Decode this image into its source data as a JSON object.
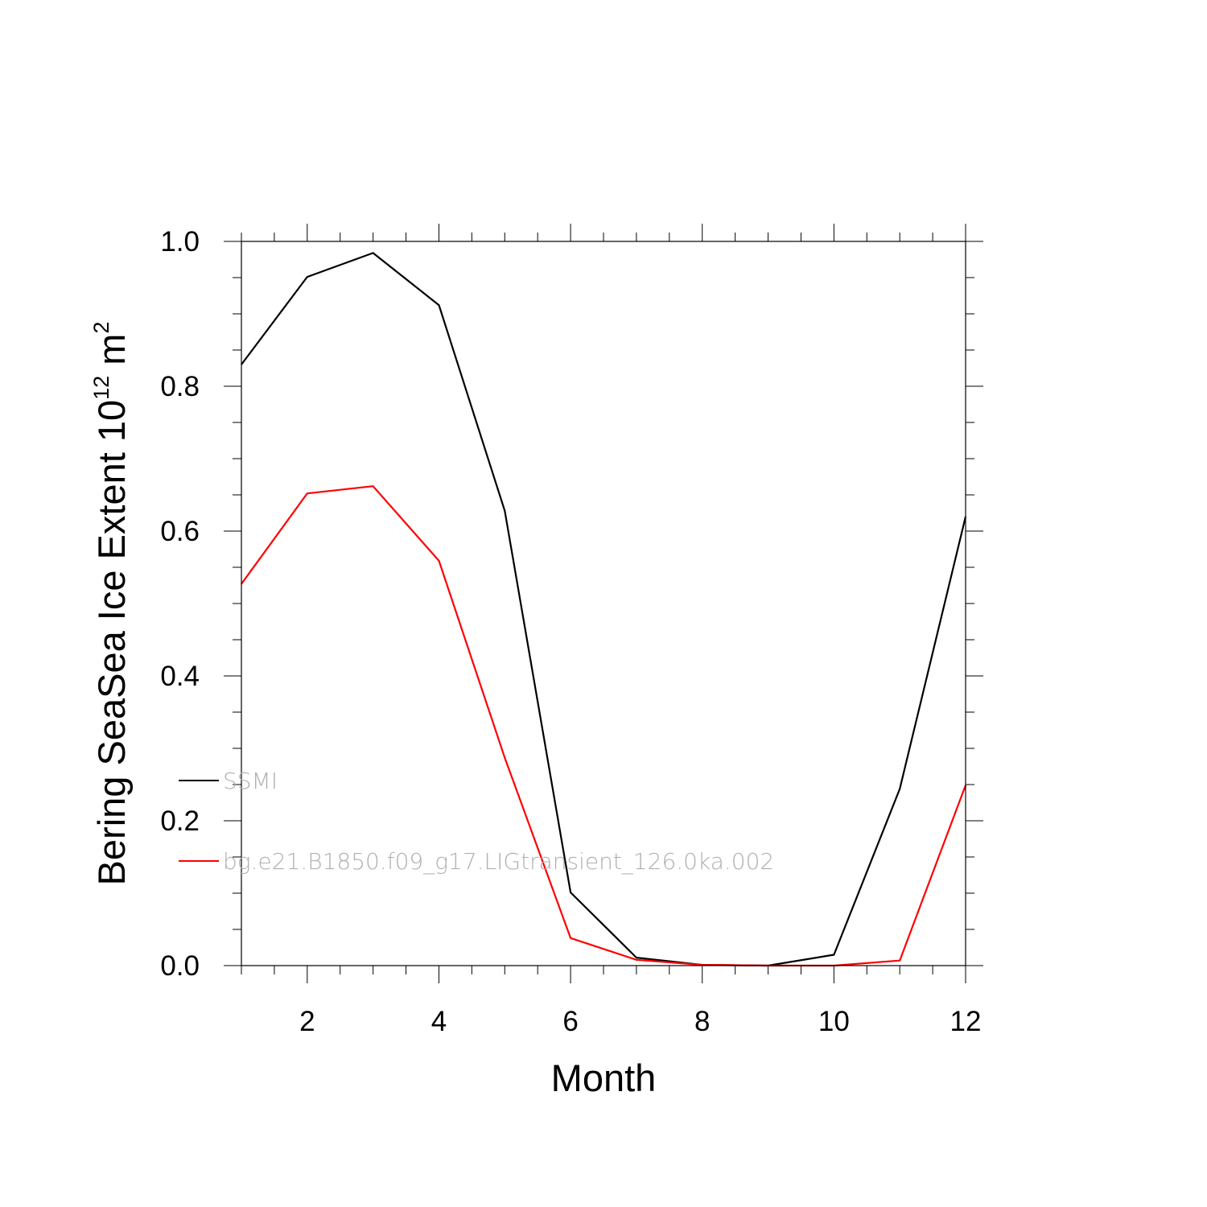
{
  "chart_data": {
    "type": "line",
    "title": "",
    "xlabel": "Month",
    "ylabel": {
      "text": "Bering SeaSea Ice Extent 10",
      "exponent": "12",
      "unit": " m",
      "unit_exponent": "2"
    },
    "xlim": [
      1,
      12
    ],
    "ylim": [
      0.0,
      1.0
    ],
    "x_ticks": [
      2,
      4,
      6,
      8,
      10,
      12
    ],
    "x_tick_labels": [
      "2",
      "4",
      "6",
      "8",
      "10",
      "12"
    ],
    "y_ticks": [
      0.0,
      0.2,
      0.4,
      0.6,
      0.8,
      1.0
    ],
    "y_tick_labels": [
      "0.0",
      "0.2",
      "0.4",
      "0.6",
      "0.8",
      "1.0"
    ],
    "grid": false,
    "legend_position": "lower-left",
    "x": [
      1,
      2,
      3,
      4,
      5,
      6,
      7,
      8,
      9,
      10,
      11,
      12
    ],
    "series": [
      {
        "name": "SSMI",
        "color": "#000000",
        "values": [
          0.83,
          0.951,
          0.984,
          0.912,
          0.628,
          0.101,
          0.011,
          0.001,
          0.0,
          0.015,
          0.244,
          0.62
        ]
      },
      {
        "name": "bg.e21.B1850.f09_g17.LIGtransient_126.0ka.002",
        "color": "#ff0000",
        "values": [
          0.527,
          0.652,
          0.662,
          0.559,
          0.287,
          0.038,
          0.008,
          0.001,
          0.0,
          0.0,
          0.007,
          0.249
        ]
      }
    ]
  }
}
